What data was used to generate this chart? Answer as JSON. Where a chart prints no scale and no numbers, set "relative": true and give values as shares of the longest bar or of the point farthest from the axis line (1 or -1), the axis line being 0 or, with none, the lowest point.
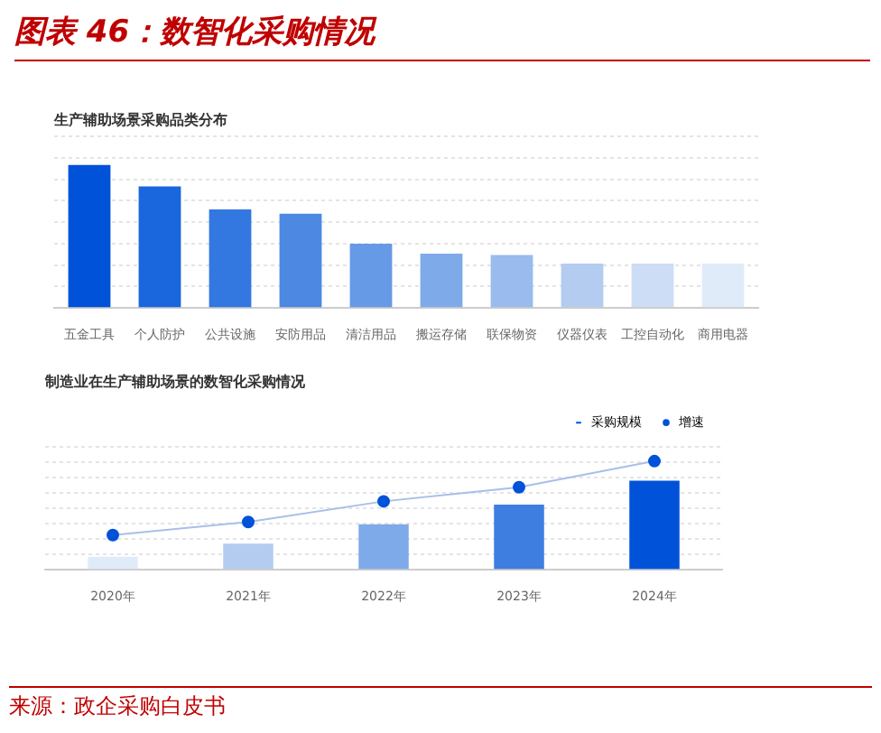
{
  "chart_data": [
    {
      "type": "bar",
      "title": "图表 46：数智化采购情况",
      "subtitle": "生产辅助场景采购品类分布",
      "relative": true,
      "grid": "y",
      "legend": false,
      "categories": [
        "五金工具",
        "个人防护",
        "公共设施",
        "安防用品",
        "清洁用品",
        "搬运存储",
        "联保物资",
        "仪器仪表",
        "工控自动化",
        "商用电器"
      ],
      "values": [
        1,
        0.85,
        0.69,
        0.66,
        0.45,
        0.38,
        0.37,
        0.31,
        0.31,
        0.31
      ],
      "colors": [
        "#0052d9",
        "#1a66dd",
        "#3377e0",
        "#4d88e3",
        "#6699e6",
        "#7faae9",
        "#99bbed",
        "#b3ccf0",
        "#ccddf5",
        "#e0ebfa"
      ]
    },
    {
      "type": "bar",
      "title": "制造业在生产辅助场景的数智化采购情况",
      "relative": true,
      "grid": "y",
      "legend": "top right",
      "categories": [
        "2020年",
        "2021年",
        "2022年",
        "2023年",
        "2024年"
      ],
      "series": [
        {
          "name": "采购规模",
          "color": "#0052d9",
          "colors": [
            "#e0ebfa",
            "#b3ccf0",
            "#7faae9",
            "#3d7ee0",
            "#0052d9"
          ],
          "values": [
            0.12,
            0.24,
            0.42,
            0.6,
            0.82
          ]
        },
        {
          "name": "增速",
          "type": "line",
          "color": "#0052d9",
          "marker": "circle",
          "values": [
            0.32,
            0.44,
            0.63,
            0.76,
            1
          ]
        }
      ],
      "annotations": [
        "来源：政企采购白皮书"
      ]
    }
  ]
}
